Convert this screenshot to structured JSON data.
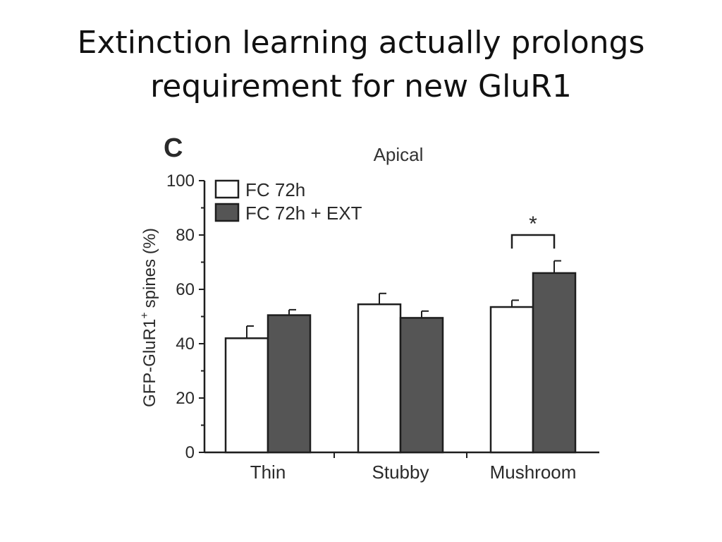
{
  "slide": {
    "title_line1": "Extinction learning actually prolongs",
    "title_line2": "requirement for new GluR1"
  },
  "panel_label": "C",
  "chart_data": {
    "type": "bar",
    "title": "Apical",
    "ylabel": "GFP-GluR1",
    "ylabel_superscript": "+",
    "ylabel_suffix": "spines (%)",
    "xlabel": "",
    "ylim": [
      0,
      100
    ],
    "yticks": [
      0,
      20,
      40,
      60,
      80,
      100
    ],
    "categories": [
      "Thin",
      "Stubby",
      "Mushroom"
    ],
    "series": [
      {
        "name": "FC 72h",
        "values": [
          42,
          54.5,
          53.5
        ],
        "errors": [
          4.5,
          4,
          2.5
        ],
        "color": "#ffffff"
      },
      {
        "name": "FC 72h + EXT",
        "values": [
          50.5,
          49.5,
          66
        ],
        "errors": [
          2,
          2.5,
          4.5
        ],
        "color": "#555555"
      }
    ],
    "significance": [
      {
        "category": "Mushroom",
        "label": "*"
      }
    ],
    "legend_position": "top-left",
    "grid": false
  }
}
